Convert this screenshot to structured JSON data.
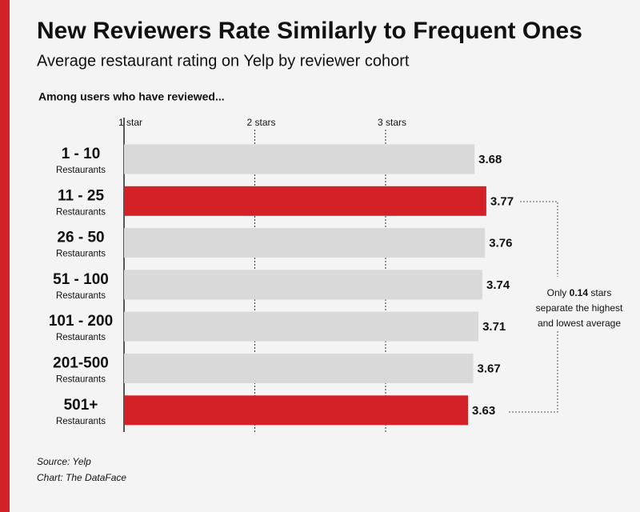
{
  "chart_data": {
    "type": "bar",
    "orientation": "horizontal",
    "title": "New Reviewers Rate Similarly to Frequent Ones",
    "subtitle": "Average restaurant rating on Yelp by reviewer cohort",
    "axis_caption": "Among users who have reviewed...",
    "categories": [
      "1 - 10",
      "11 - 25",
      "26 - 50",
      "51 - 100",
      "101 - 200",
      "201-500",
      "501+"
    ],
    "category_unit": "Restaurants",
    "values": [
      3.68,
      3.77,
      3.76,
      3.74,
      3.71,
      3.67,
      3.63
    ],
    "colors": [
      "#d9d9d9",
      "#d42027",
      "#d9d9d9",
      "#d9d9d9",
      "#d9d9d9",
      "#d9d9d9",
      "#d42027"
    ],
    "xlim": [
      1,
      4
    ],
    "xticks": [
      {
        "value": 1,
        "label": "1 star"
      },
      {
        "value": 2,
        "label": "2 stars"
      },
      {
        "value": 3,
        "label": "3 stars"
      }
    ],
    "grid": true,
    "annotation": {
      "lead": "Only",
      "highlight": 0.14,
      "tail": "stars separate the highest and lowest average"
    },
    "source": "Source: Yelp",
    "credit": "Chart: The DataFace"
  }
}
